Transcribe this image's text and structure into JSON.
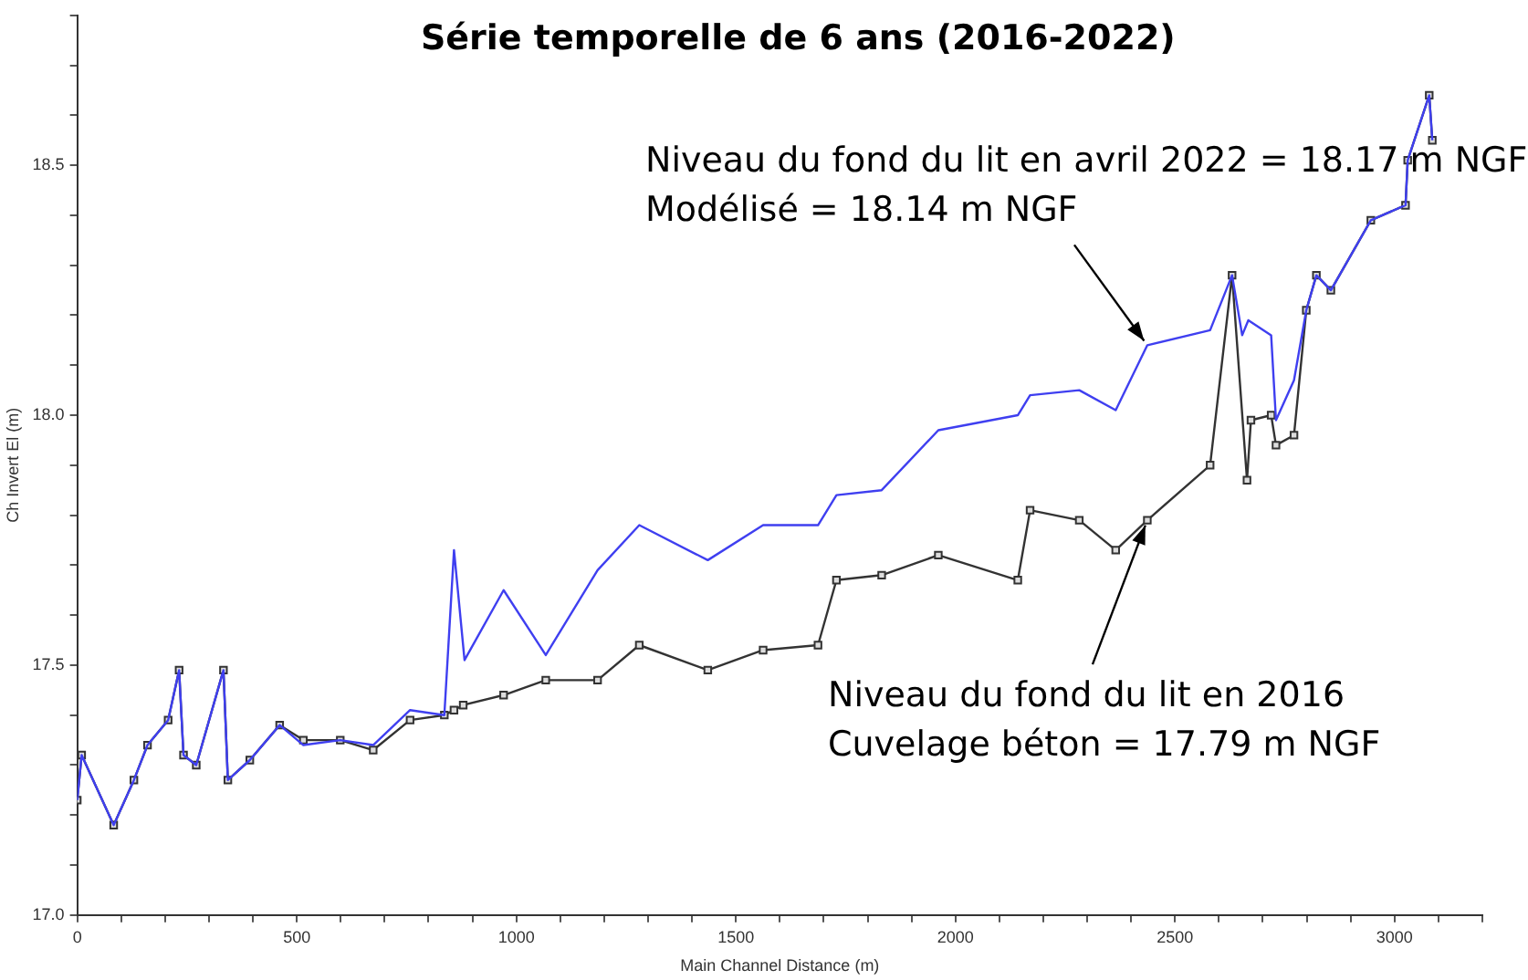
{
  "chart_data": {
    "type": "line",
    "title": "Série temporelle de 6 ans (2016-2022)",
    "xlabel": "Main Channel Distance (m)",
    "ylabel": "Ch Invert El (m)",
    "xlim": [
      0,
      3200
    ],
    "ylim": [
      17,
      18.8
    ],
    "xticks": [
      0,
      {
        "value": 100,
        "label": null
      },
      {
        "value": 200,
        "label": null
      },
      {
        "value": 300,
        "label": null
      },
      {
        "value": 400,
        "label": null
      },
      500,
      {
        "value": 600,
        "label": null
      },
      {
        "value": 700,
        "label": null
      },
      {
        "value": 800,
        "label": null
      },
      {
        "value": 900,
        "label": null
      },
      1000,
      {
        "value": 1100,
        "label": null
      },
      {
        "value": 1200,
        "label": null
      },
      {
        "value": 1300,
        "label": null
      },
      {
        "value": 1400,
        "label": null
      },
      1500,
      {
        "value": 1600,
        "label": null
      },
      {
        "value": 1700,
        "label": null
      },
      {
        "value": 1800,
        "label": null
      },
      {
        "value": 1900,
        "label": null
      },
      2000,
      {
        "value": 2100,
        "label": null
      },
      {
        "value": 2200,
        "label": null
      },
      {
        "value": 2300,
        "label": null
      },
      {
        "value": 2400,
        "label": null
      },
      2500,
      {
        "value": 2600,
        "label": null
      },
      {
        "value": 2700,
        "label": null
      },
      {
        "value": 2800,
        "label": null
      },
      {
        "value": 2900,
        "label": null
      },
      3000,
      {
        "value": 3100,
        "label": null
      },
      {
        "value": 3200,
        "label": null
      }
    ],
    "yticks": [
      {
        "value": 17,
        "label": "17.0"
      },
      {
        "value": 17.1,
        "label": null
      },
      {
        "value": 17.2,
        "label": null
      },
      {
        "value": 17.3,
        "label": null
      },
      {
        "value": 17.4,
        "label": null
      },
      17.5,
      {
        "value": 17.6,
        "label": null
      },
      {
        "value": 17.7,
        "label": null
      },
      {
        "value": 17.8,
        "label": null
      },
      {
        "value": 17.9,
        "label": null
      },
      {
        "value": 18,
        "label": "18.0"
      },
      {
        "value": 18.1,
        "label": null
      },
      {
        "value": 18.2,
        "label": null
      },
      {
        "value": 18.3,
        "label": null
      },
      {
        "value": 18.4,
        "label": null
      },
      18.5,
      {
        "value": 18.6,
        "label": null
      },
      {
        "value": 18.7,
        "label": null
      },
      {
        "value": 18.8,
        "label": null
      }
    ],
    "grid": false,
    "legend": false,
    "series": [
      {
        "color": "#3f3ff0",
        "marker": "none",
        "x": [
          0,
          10,
          83,
          129,
          160,
          207,
          232,
          242,
          271,
          333,
          343,
          393,
          461,
          515,
          599,
          674,
          758,
          836,
          858,
          882,
          971,
          1067,
          1185,
          1280,
          1436,
          1562,
          1687,
          1729,
          1832,
          1961,
          2142,
          2170,
          2282,
          2365,
          2437,
          2580,
          2630,
          2653,
          2667,
          2719,
          2730,
          2771,
          2799,
          2822,
          2855,
          2946,
          3025,
          3030,
          3079,
          3086
        ],
        "values": [
          17.23,
          17.32,
          17.18,
          17.27,
          17.34,
          17.39,
          17.49,
          17.32,
          17.3,
          17.49,
          17.27,
          17.31,
          17.38,
          17.34,
          17.35,
          17.34,
          17.41,
          17.4,
          17.73,
          17.51,
          17.65,
          17.52,
          17.69,
          17.78,
          17.71,
          17.78,
          17.78,
          17.84,
          17.85,
          17.97,
          18,
          18.04,
          18.05,
          18.01,
          18.14,
          18.17,
          18.28,
          18.16,
          18.19,
          18.16,
          17.99,
          18.07,
          18.21,
          18.28,
          18.25,
          18.39,
          18.42,
          18.51,
          18.64,
          18.55
        ]
      },
      {
        "color": "#333333",
        "marker": "square",
        "x": [
          0,
          10,
          83,
          129,
          160,
          207,
          232,
          242,
          271,
          333,
          343,
          393,
          461,
          515,
          599,
          674,
          758,
          836,
          858,
          879,
          971,
          1067,
          1185,
          1280,
          1436,
          1562,
          1687,
          1729,
          1832,
          1961,
          2142,
          2170,
          2282,
          2365,
          2437,
          2580,
          2630,
          2664,
          2673,
          2719,
          2730,
          2771,
          2799,
          2822,
          2855,
          2946,
          3025,
          3030,
          3079,
          3086
        ],
        "values": [
          17.23,
          17.32,
          17.18,
          17.27,
          17.34,
          17.39,
          17.49,
          17.32,
          17.3,
          17.49,
          17.27,
          17.31,
          17.38,
          17.35,
          17.35,
          17.33,
          17.39,
          17.4,
          17.41,
          17.42,
          17.44,
          17.47,
          17.47,
          17.54,
          17.49,
          17.53,
          17.54,
          17.67,
          17.68,
          17.72,
          17.67,
          17.81,
          17.79,
          17.73,
          17.79,
          17.9,
          18.28,
          17.87,
          17.99,
          18,
          17.94,
          17.96,
          18.21,
          18.28,
          18.25,
          18.39,
          18.42,
          18.51,
          18.64,
          18.55
        ]
      }
    ],
    "annotations": [
      {
        "text": "Niveau du fond du lit en avril 2022 = 18.17 m NGF\nModélisé = 18.14 m NGF",
        "x": 2437,
        "y": 18.14
      },
      {
        "text": "Niveau du fond du lit en 2016\nCuvelage béton = 17.79 m NGF",
        "x": 2437,
        "y": 17.79
      }
    ]
  }
}
